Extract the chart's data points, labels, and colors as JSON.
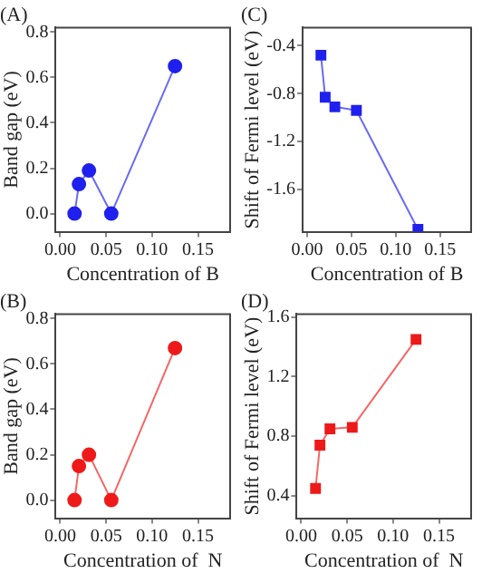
{
  "chart_data": [
    {
      "type": "line",
      "title": "(A)",
      "xlabel": "Concentration of B",
      "ylabel": "Band gap (eV)",
      "x": [
        0.0156,
        0.0204,
        0.0313,
        0.0556,
        0.125
      ],
      "series": [
        {
          "color": "#2020ee",
          "values": [
            0,
            0.13,
            0.19,
            0,
            0.65
          ]
        }
      ],
      "xlim": [
        -0.005,
        0.185
      ],
      "xticks": [
        {
          "value": 0,
          "label": "0.00"
        },
        {
          "value": 0.05,
          "label": "0.05"
        },
        {
          "value": 0.1,
          "label": "0.10"
        },
        {
          "value": 0.15,
          "label": "0.15"
        }
      ],
      "ylim": [
        -0.08,
        0.82
      ],
      "yticks": [
        {
          "value": 0,
          "label": "0.0"
        },
        {
          "value": 0.2,
          "label": "0.2"
        },
        {
          "value": 0.4,
          "label": "0.4"
        },
        {
          "value": 0.6,
          "label": "0.6"
        },
        {
          "value": 0.8,
          "label": "0.8"
        }
      ],
      "grid": false,
      "legend": false,
      "marker": "circle"
    },
    {
      "type": "line",
      "title": "(C)",
      "xlabel": "Concentration of B",
      "ylabel": "Shift of Fermi level (eV)",
      "x": [
        0.0156,
        0.0204,
        0.0313,
        0.0556,
        0.125
      ],
      "series": [
        {
          "color": "#2020ee",
          "values": [
            -0.48,
            -0.83,
            -0.91,
            -0.94,
            -1.93
          ]
        }
      ],
      "xlim": [
        -0.005,
        0.185
      ],
      "xticks": [
        {
          "value": 0,
          "label": "0.00"
        },
        {
          "value": 0.05,
          "label": "0.05"
        },
        {
          "value": 0.1,
          "label": "0.10"
        },
        {
          "value": 0.15,
          "label": "0.15"
        }
      ],
      "ylim": [
        -1.95,
        -0.25
      ],
      "yticks": [
        {
          "value": -1.6,
          "label": "-1.6"
        },
        {
          "value": -1.2,
          "label": "-1.2"
        },
        {
          "value": -0.8,
          "label": "-0.8"
        },
        {
          "value": -0.4,
          "label": "-0.4"
        }
      ],
      "grid": false,
      "legend": false,
      "marker": "square"
    },
    {
      "type": "line",
      "title": "(B)",
      "xlabel": "Concentration of  N",
      "ylabel": "Band gap (eV)",
      "x": [
        0.0156,
        0.0204,
        0.0313,
        0.0556,
        0.125
      ],
      "series": [
        {
          "color": "#ee1a1a",
          "values": [
            0,
            0.15,
            0.2,
            0,
            0.67
          ]
        }
      ],
      "xlim": [
        -0.005,
        0.185
      ],
      "xticks": [
        {
          "value": 0,
          "label": "0.00"
        },
        {
          "value": 0.05,
          "label": "0.05"
        },
        {
          "value": 0.1,
          "label": "0.10"
        },
        {
          "value": 0.15,
          "label": "0.15"
        }
      ],
      "ylim": [
        -0.08,
        0.82
      ],
      "yticks": [
        {
          "value": 0,
          "label": "0.0"
        },
        {
          "value": 0.2,
          "label": "0.2"
        },
        {
          "value": 0.4,
          "label": "0.4"
        },
        {
          "value": 0.6,
          "label": "0.6"
        },
        {
          "value": 0.8,
          "label": "0.8"
        }
      ],
      "grid": false,
      "legend": false,
      "marker": "circle"
    },
    {
      "type": "line",
      "title": "(D)",
      "xlabel": "Concentration of  N",
      "ylabel": "Shift of Fermi level (eV)",
      "x": [
        0.0156,
        0.0204,
        0.0313,
        0.0556,
        0.125
      ],
      "series": [
        {
          "color": "#ee1a1a",
          "values": [
            0.45,
            0.74,
            0.85,
            0.86,
            1.45
          ]
        }
      ],
      "xlim": [
        -0.005,
        0.185
      ],
      "xticks": [
        {
          "value": 0,
          "label": "0.00"
        },
        {
          "value": 0.05,
          "label": "0.05"
        },
        {
          "value": 0.1,
          "label": "0.10"
        },
        {
          "value": 0.15,
          "label": "0.15"
        }
      ],
      "ylim": [
        0.25,
        1.62
      ],
      "yticks": [
        {
          "value": 0.4,
          "label": "0.4"
        },
        {
          "value": 0.8,
          "label": "0.8"
        },
        {
          "value": 1.2,
          "label": "1.2"
        },
        {
          "value": 1.6,
          "label": "1.6"
        }
      ],
      "grid": false,
      "legend": false,
      "marker": "square"
    }
  ]
}
